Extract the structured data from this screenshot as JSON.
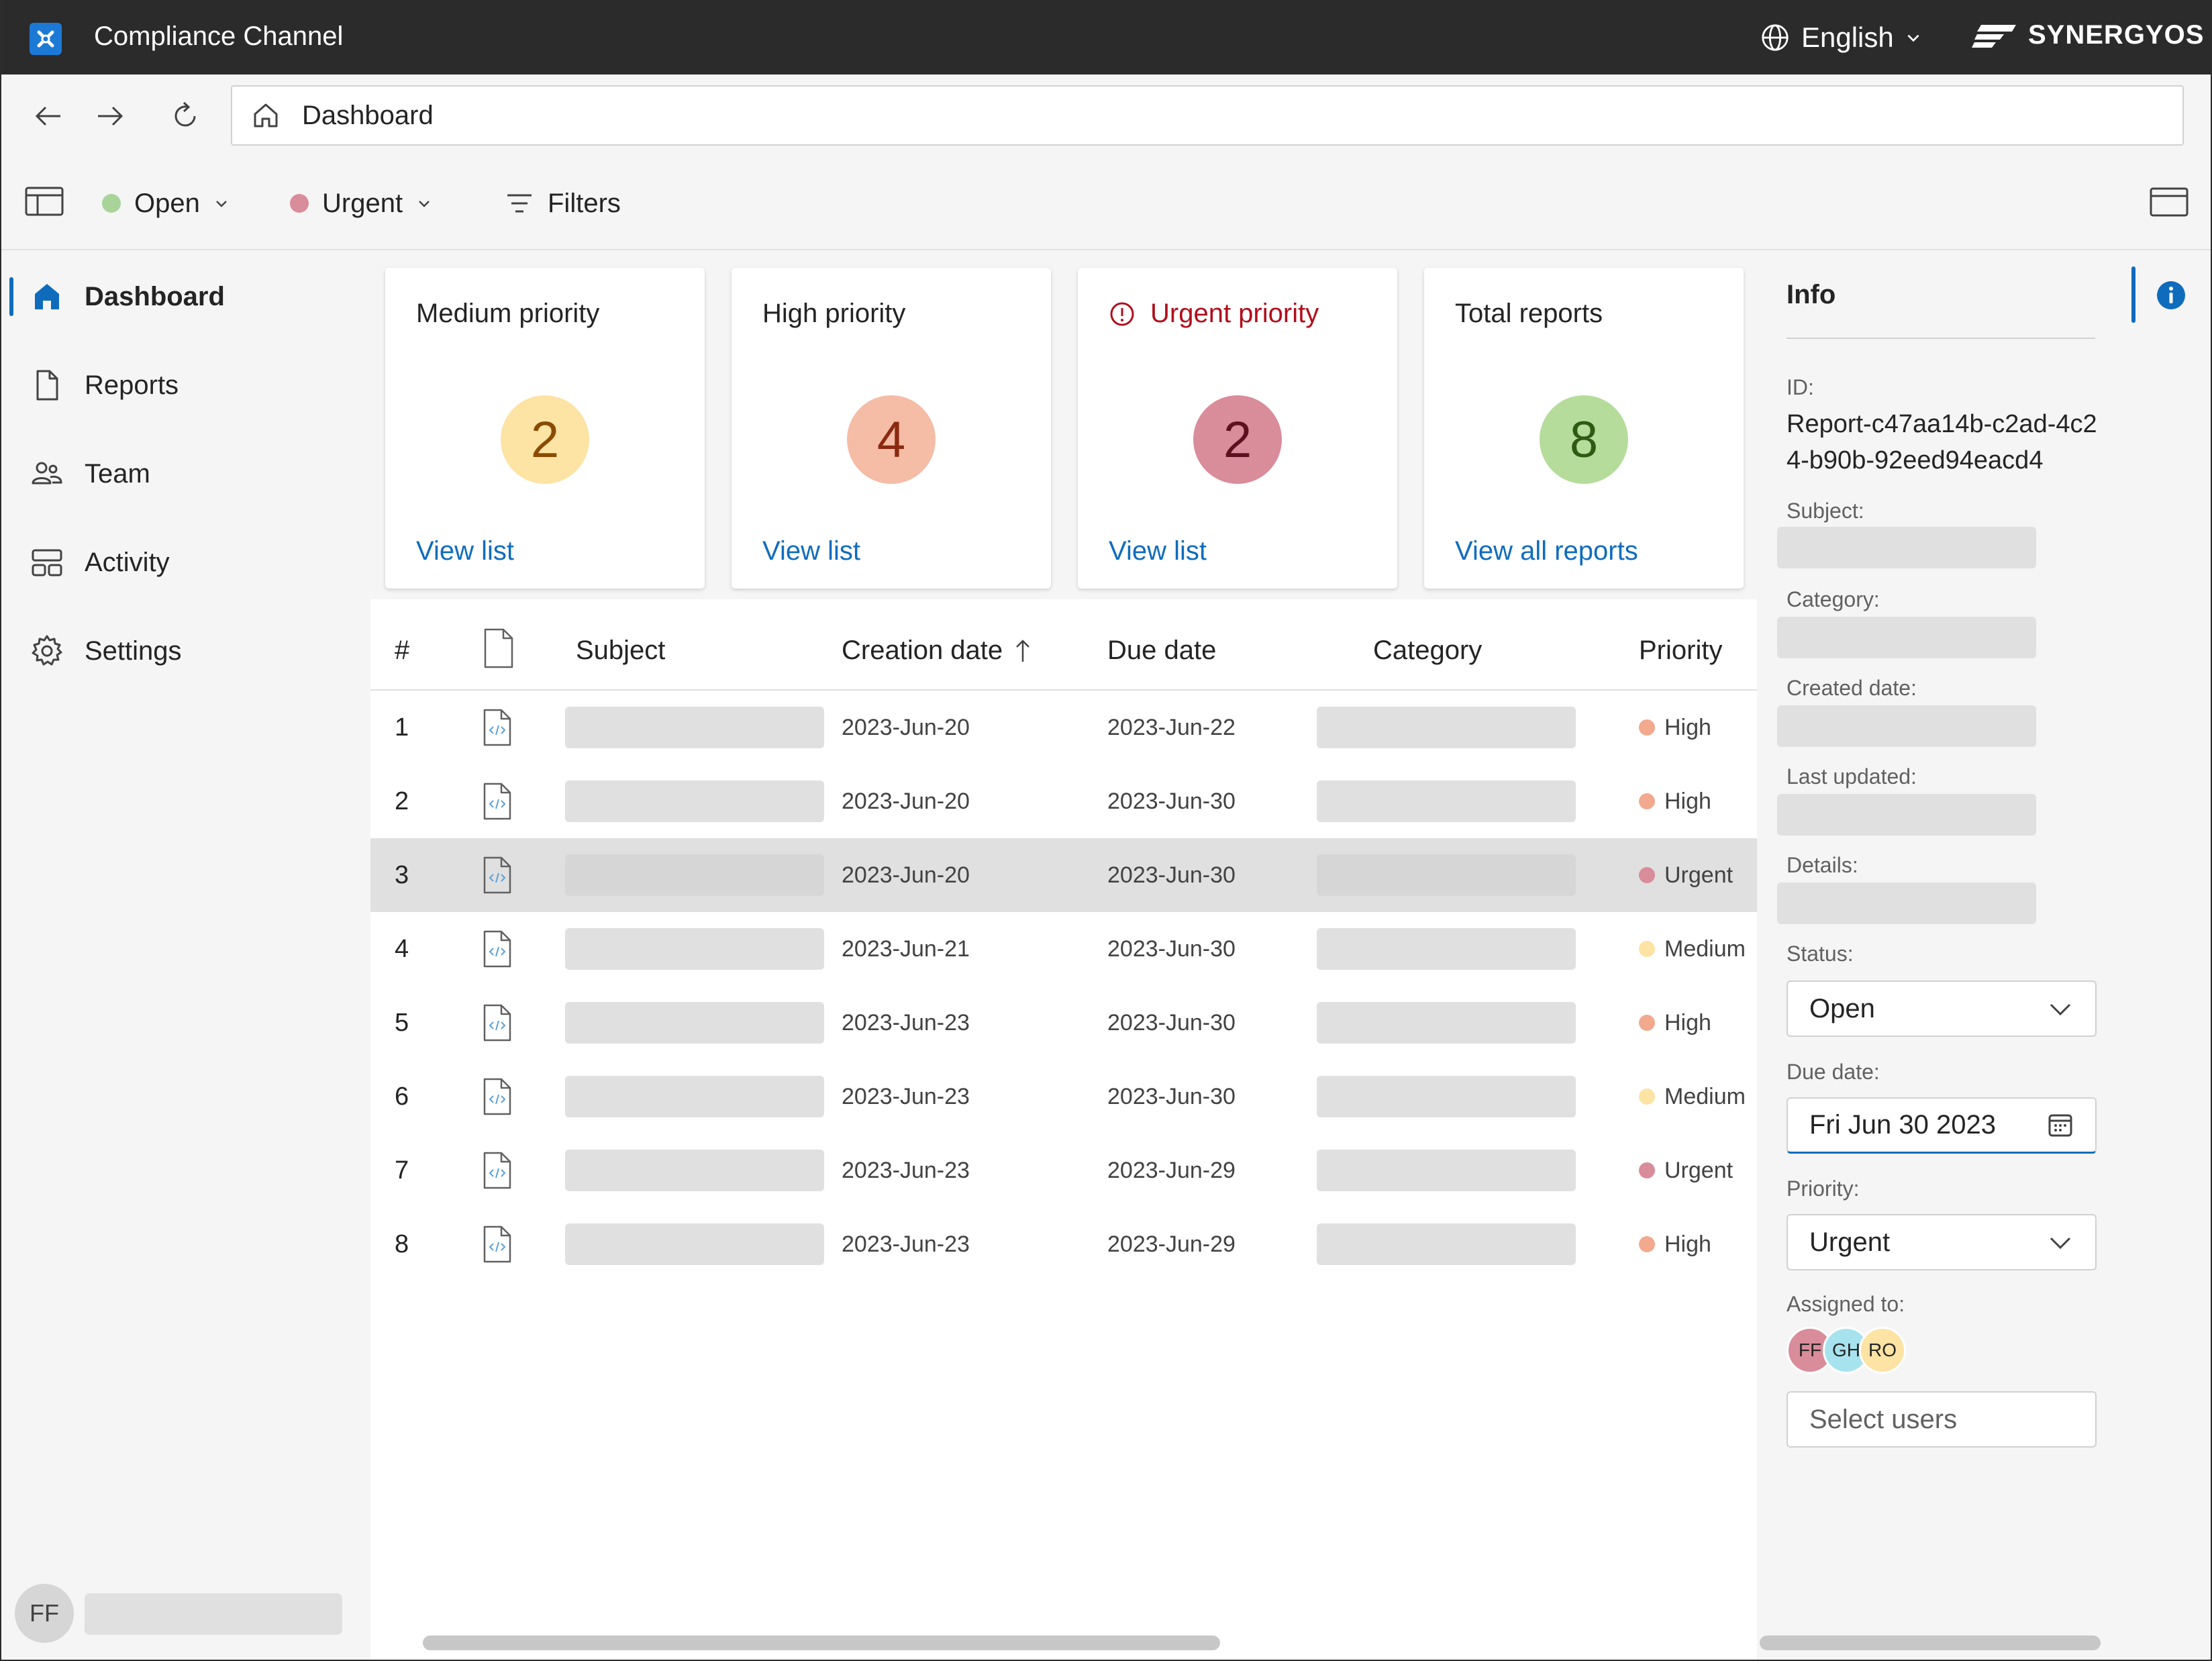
{
  "titlebar": {
    "app_title": "Compliance Channel",
    "language": "English",
    "brand": "SYNERGYOS"
  },
  "navbar": {
    "address": "Dashboard"
  },
  "cmdbar": {
    "status_filter": "Open",
    "status_color": "#a8d49a",
    "priority_filter": "Urgent",
    "priority_color": "#d98c9a",
    "filters_label": "Filters"
  },
  "sidebar": {
    "items": [
      {
        "label": "Dashboard",
        "icon": "home-icon"
      },
      {
        "label": "Reports",
        "icon": "document-icon"
      },
      {
        "label": "Team",
        "icon": "people-icon"
      },
      {
        "label": "Activity",
        "icon": "activity-icon"
      },
      {
        "label": "Settings",
        "icon": "gear-icon"
      }
    ],
    "user_initials": "FF"
  },
  "cards": [
    {
      "title": "Medium priority",
      "count": "2",
      "link": "View list",
      "color": "#fde3a4",
      "text_color": "#8a4b00"
    },
    {
      "title": "High priority",
      "count": "4",
      "link": "View list",
      "color": "#f5bca6",
      "text_color": "#8a2a10"
    },
    {
      "title": "Urgent priority",
      "count": "2",
      "link": "View list",
      "color": "#d98c9a",
      "text_color": "#5c1020"
    },
    {
      "title": "Total reports",
      "count": "8",
      "link": "View all reports",
      "color": "#b5dc9a",
      "text_color": "#2e5a14"
    }
  ],
  "table": {
    "headers": {
      "index": "#",
      "subject": "Subject",
      "creation": "Creation date",
      "due": "Due date",
      "category": "Category",
      "priority": "Priority"
    },
    "rows": [
      {
        "index": "1",
        "created": "2023-Jun-20",
        "due": "2023-Jun-22",
        "priority": "High"
      },
      {
        "index": "2",
        "created": "2023-Jun-20",
        "due": "2023-Jun-30",
        "priority": "High"
      },
      {
        "index": "3",
        "created": "2023-Jun-20",
        "due": "2023-Jun-30",
        "priority": "Urgent"
      },
      {
        "index": "4",
        "created": "2023-Jun-21",
        "due": "2023-Jun-30",
        "priority": "Medium"
      },
      {
        "index": "5",
        "created": "2023-Jun-23",
        "due": "2023-Jun-30",
        "priority": "High"
      },
      {
        "index": "6",
        "created": "2023-Jun-23",
        "due": "2023-Jun-30",
        "priority": "Medium"
      },
      {
        "index": "7",
        "created": "2023-Jun-23",
        "due": "2023-Jun-29",
        "priority": "Urgent"
      },
      {
        "index": "8",
        "created": "2023-Jun-23",
        "due": "2023-Jun-29",
        "priority": "High"
      }
    ],
    "priority_colors": {
      "High": "#f2a98e",
      "Urgent": "#d98c9a",
      "Medium": "#fde3a4"
    }
  },
  "info": {
    "title": "Info",
    "id_label": "ID:",
    "id_value": "Report-c47aa14b-c2ad-4c24-b90b-92eed94eacd4",
    "subject_label": "Subject:",
    "category_label": "Category:",
    "created_label": "Created date:",
    "updated_label": "Last updated:",
    "details_label": "Details:",
    "status_label": "Status:",
    "status_value": "Open",
    "due_label": "Due date:",
    "due_value": "Fri Jun 30 2023",
    "priority_label": "Priority:",
    "priority_value": "Urgent",
    "assigned_label": "Assigned to:",
    "assignees": [
      {
        "initials": "FF",
        "color": "#d98c9a"
      },
      {
        "initials": "GH",
        "color": "#a7e3ee"
      },
      {
        "initials": "RO",
        "color": "#fde3a4"
      }
    ],
    "select_users_placeholder": "Select users"
  }
}
